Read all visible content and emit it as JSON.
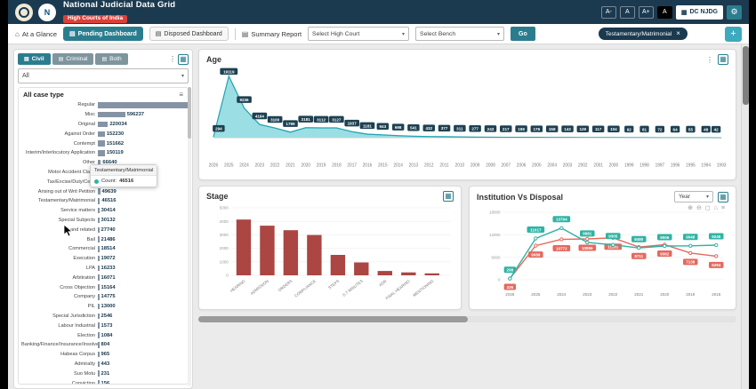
{
  "header": {
    "title": "National Judicial Data Grid",
    "subtitle": "High Courts of India",
    "nic_letter": "N",
    "font_buttons": [
      "A-",
      "A",
      "A+",
      "A"
    ],
    "dc_njdg_label": "DC NJDG"
  },
  "toolbar": {
    "at_a_glance": "At a Glance",
    "pending": "Pending Dashboard",
    "disposed": "Disposed Dashboard",
    "summary": "Summary Report",
    "select_high_court": "Select High Court",
    "select_bench": "Select Bench",
    "go": "Go",
    "filter_tag": "Testamentary/Matrimonial",
    "add_button": "+"
  },
  "sidebar": {
    "tabs": [
      "Civil",
      "Criminal",
      "Both"
    ],
    "active_tab": "Civil",
    "filter_all": "All",
    "panel_title": "All case type"
  },
  "panels": {
    "age_title": "Age",
    "stage_title": "Stage",
    "ivd_title": "Institution Vs Disposal",
    "ivd_period": "Year"
  },
  "tooltip": {
    "title": "Testamentary/Matrimonial",
    "label": "Count:",
    "value": "46516"
  },
  "icons": {
    "home": "⌂",
    "dashboard": "▤",
    "report": "▤",
    "caret": "▾",
    "close": "×",
    "gear": "⚙",
    "building": "▦",
    "table": "▦",
    "menu": "≡",
    "dots": "⋮",
    "zoom_in": "⊕",
    "zoom_out": "⊖",
    "selection": "◻",
    "reset": "⌂"
  },
  "colors": {
    "header_bg": "#1b3a50",
    "accent_teal": "#2b7d8e",
    "subtitle_red": "#d9403a",
    "age_fill": "#49c2cc",
    "age_stroke": "#23a3ae",
    "stage_bar": "#ab4642",
    "institution_line": "#e4695e",
    "disposal_line": "#2fb3a4",
    "case_bar": "#8593a5",
    "label_pill": "#1d4152"
  },
  "chart_data": [
    {
      "id": "all-case-type",
      "type": "bar",
      "orientation": "horizontal",
      "title": "All case type",
      "categories": [
        "Regular",
        "Misc",
        "Original",
        "Against Order",
        "Contempt",
        "Interim/Interlocutory Application",
        "Other",
        "Motor Accident Claim",
        "Tax/Excise/Duty/Cess",
        "Arising out of Writ Petition",
        "Testamentary/Matrimonial",
        "Service matters",
        "Special Subjects",
        "Land related",
        "Bail",
        "Commercial",
        "Execution",
        "LPA",
        "Arbitration",
        "Cross Objection",
        "Company",
        "PIL",
        "Special Jurisdiction",
        "Labour Industrial",
        "Election",
        "Banking/Finance/Insurance/Insolvency",
        "Habeas Corpus",
        "Admiralty",
        "Suo Motu",
        "Conviction"
      ],
      "values": [
        2019971,
        596237,
        220034,
        152230,
        151662,
        150119,
        66640,
        60131,
        52354,
        49639,
        46516,
        30414,
        30132,
        27740,
        21486,
        18514,
        19072,
        16233,
        16071,
        15164,
        14775,
        13000,
        2546,
        1573,
        1084,
        804,
        965,
        443,
        231,
        156
      ]
    },
    {
      "id": "age",
      "type": "area",
      "title": "Age",
      "x": [
        "2026",
        "2025",
        "2024",
        "2023",
        "2022",
        "2021",
        "2020",
        "2019",
        "2018",
        "2017",
        "2016",
        "2015",
        "2014",
        "2013",
        "2012",
        "2011",
        "2010",
        "2009",
        "2008",
        "2007",
        "2006",
        "2005",
        "2004",
        "2003",
        "2002",
        "2001",
        "2000",
        "1999",
        "1998",
        "1997",
        "1996",
        "1995",
        "1994",
        "1993"
      ],
      "values": [
        294,
        19119,
        9236,
        4164,
        3100,
        1799,
        3181,
        3112,
        3127,
        1937,
        1181,
        943,
        698,
        541,
        432,
        377,
        311,
        277,
        243,
        217,
        198,
        176,
        158,
        143,
        129,
        117,
        104,
        92,
        81,
        72,
        64,
        55,
        48,
        42
      ],
      "ylim": [
        0,
        20000
      ]
    },
    {
      "id": "stage",
      "type": "bar",
      "title": "Stage",
      "categories": [
        "HEARING",
        "ADMISSION",
        "ORDERS",
        "COMPLIANCE",
        "STEPS",
        "S.T MINUTES",
        "ADR",
        "FINAL HEARING",
        "MENTIONING"
      ],
      "values": [
        4132,
        3678,
        3344,
        2989,
        1513,
        956,
        324,
        215,
        148
      ],
      "ylim": [
        0,
        5000
      ],
      "yticks": [
        0,
        1000,
        2000,
        3000,
        4000,
        5000
      ]
    },
    {
      "id": "institution-vs-disposal",
      "type": "line",
      "title": "Institution Vs Disposal",
      "x": [
        "2026",
        "2025",
        "2024",
        "2023",
        "2022",
        "2021",
        "2020",
        "2019",
        "2018"
      ],
      "series": [
        {
          "name": "Institution",
          "color": "#e4695e",
          "values": [
            326,
            9089,
            10772,
            10896,
            11181,
            8711,
            9362,
            7138,
            6294
          ]
        },
        {
          "name": "Disposal",
          "color": "#2fb3a4",
          "values": [
            298,
            11017,
            13794,
            9981,
            9305,
            8480,
            9006,
            9048,
            9245
          ]
        }
      ],
      "ylim": [
        0,
        18000
      ],
      "yticks": [
        0,
        6000,
        12000,
        18000
      ]
    }
  ]
}
